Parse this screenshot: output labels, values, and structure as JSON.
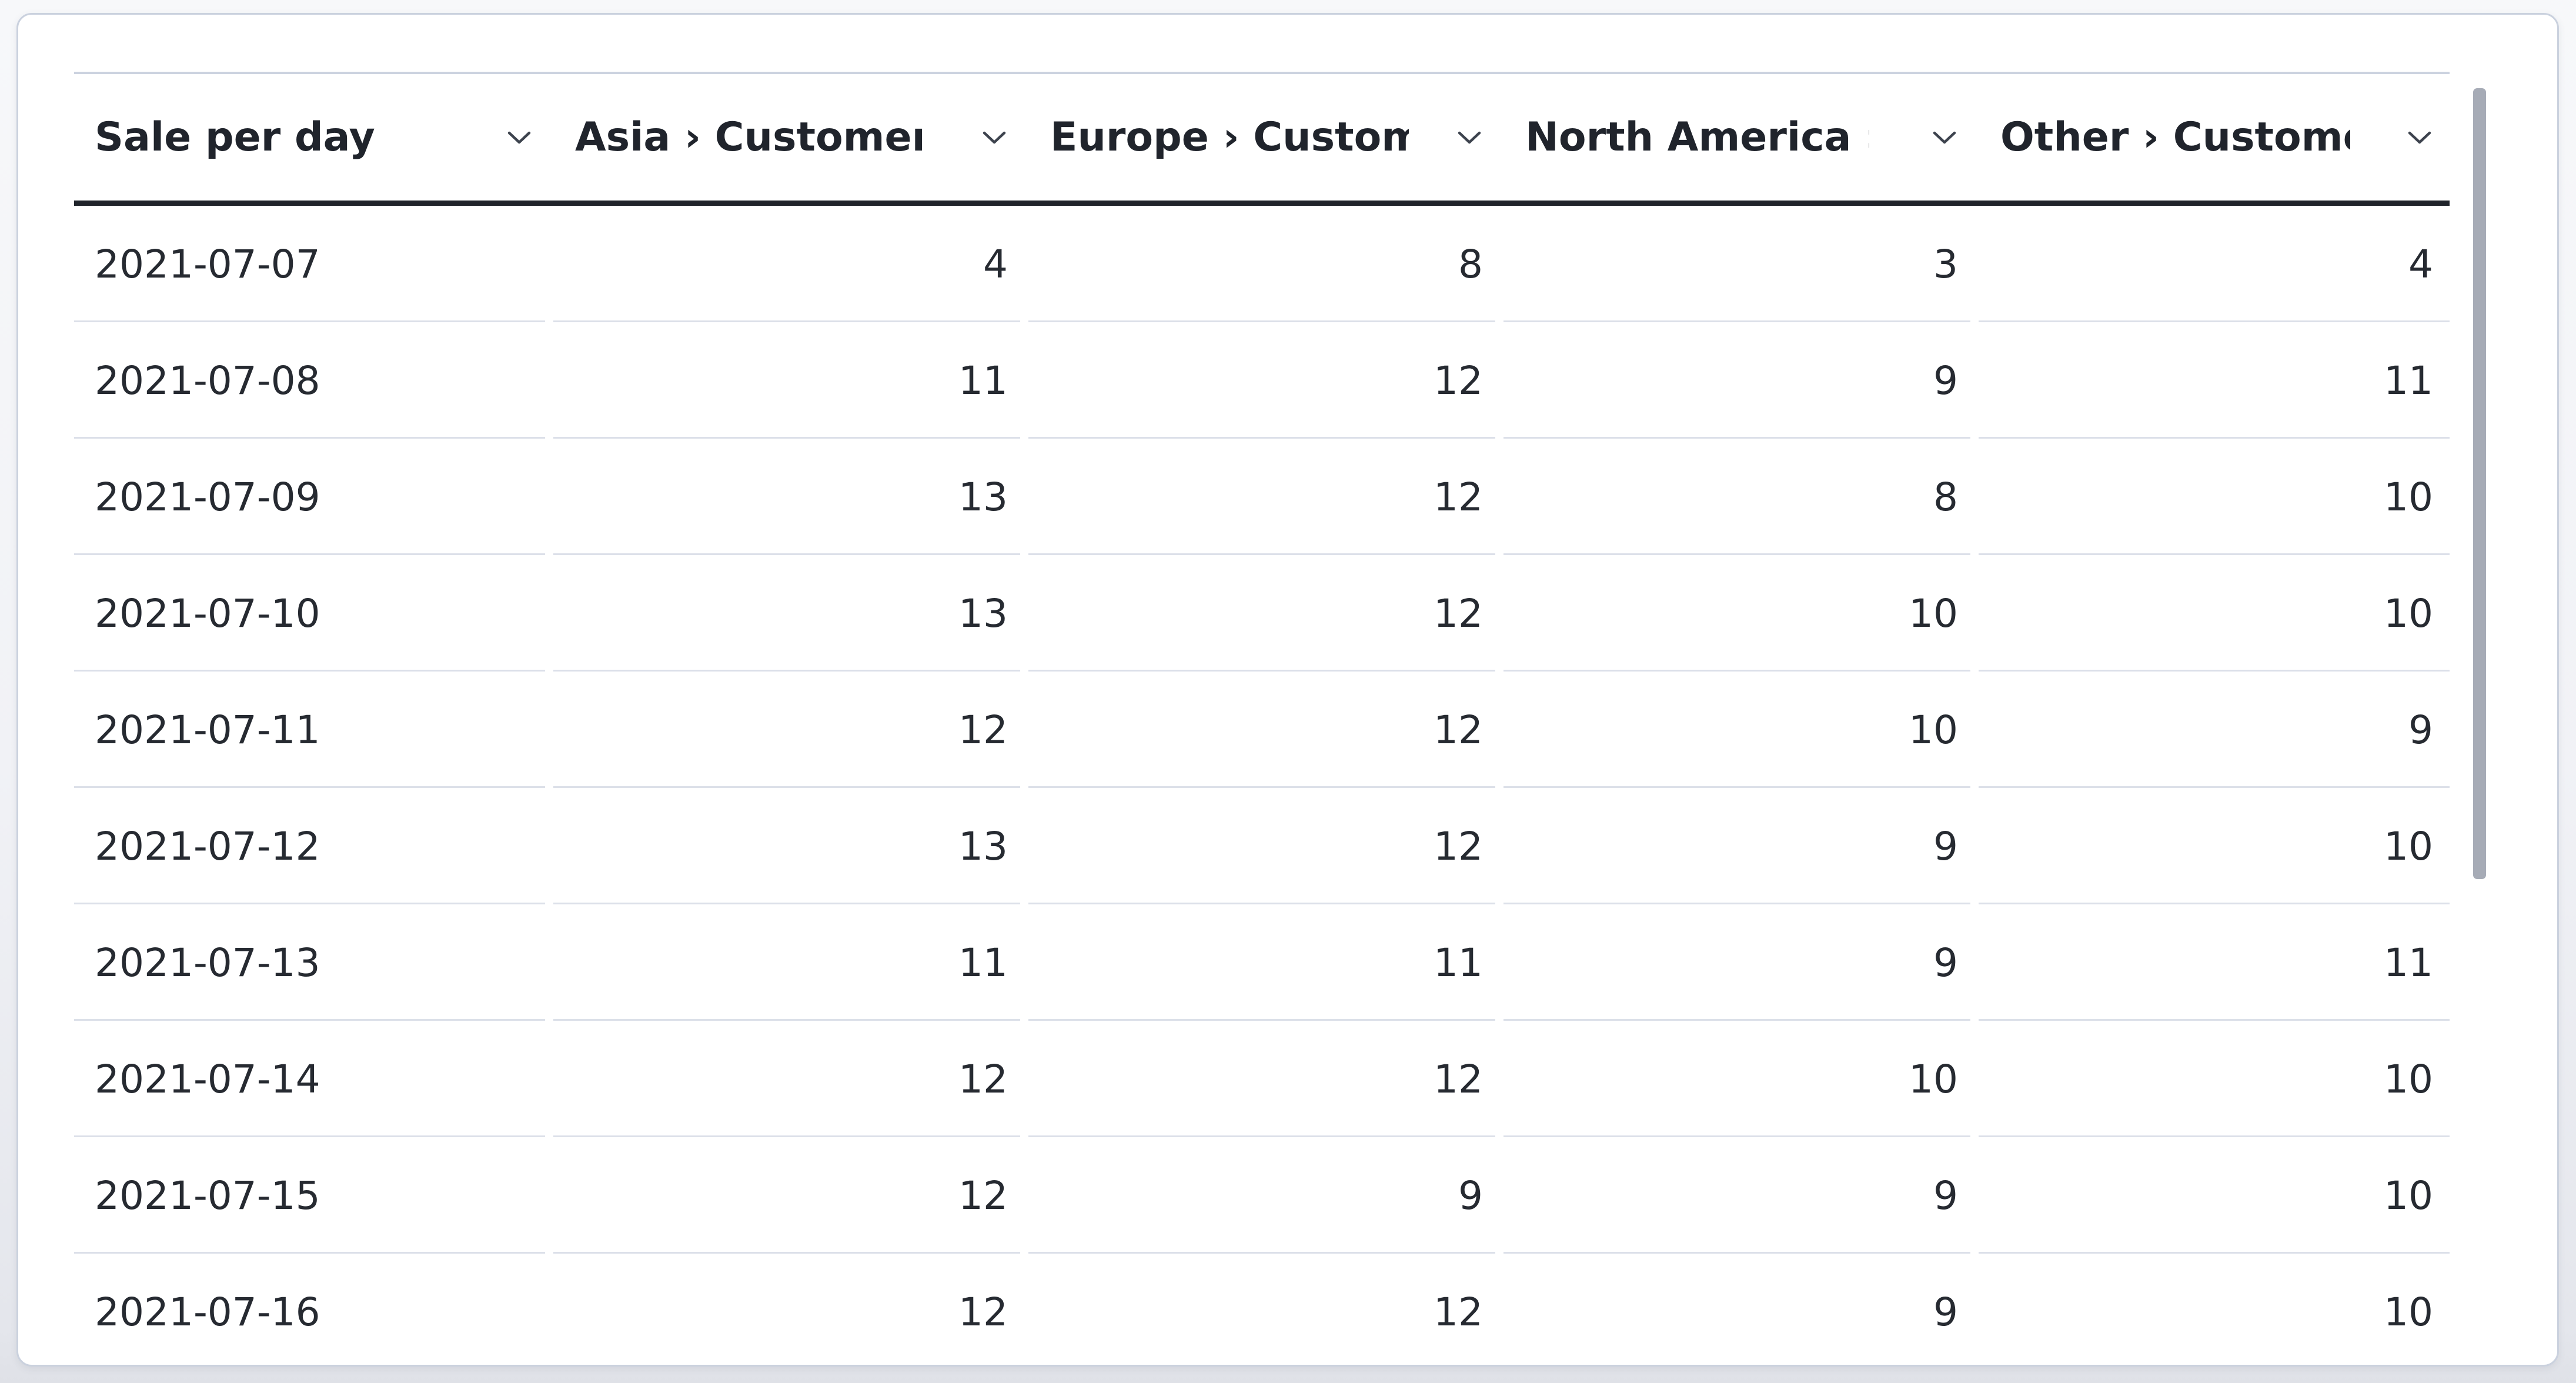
{
  "table": {
    "columns": [
      {
        "id": "sale-per-day",
        "label": "Sale per day",
        "align": "left"
      },
      {
        "id": "asia-customers",
        "label": "Asia › Customers",
        "align": "right"
      },
      {
        "id": "europe-customers",
        "label": "Europe › Customers",
        "align": "right"
      },
      {
        "id": "north-america-customers",
        "label": "North America › Customers",
        "align": "right"
      },
      {
        "id": "other-customers",
        "label": "Other › Customers",
        "align": "right"
      }
    ],
    "rows": [
      {
        "date": "2021-07-07",
        "values": [
          4,
          8,
          3,
          4
        ]
      },
      {
        "date": "2021-07-08",
        "values": [
          11,
          12,
          9,
          11
        ]
      },
      {
        "date": "2021-07-09",
        "values": [
          13,
          12,
          8,
          10
        ]
      },
      {
        "date": "2021-07-10",
        "values": [
          13,
          12,
          10,
          10
        ]
      },
      {
        "date": "2021-07-11",
        "values": [
          12,
          12,
          10,
          9
        ]
      },
      {
        "date": "2021-07-12",
        "values": [
          13,
          12,
          9,
          10
        ]
      },
      {
        "date": "2021-07-13",
        "values": [
          11,
          11,
          9,
          11
        ]
      },
      {
        "date": "2021-07-14",
        "values": [
          12,
          12,
          10,
          10
        ]
      },
      {
        "date": "2021-07-15",
        "values": [
          12,
          9,
          9,
          10
        ]
      },
      {
        "date": "2021-07-16",
        "values": [
          12,
          12,
          9,
          10
        ]
      }
    ]
  },
  "icons": {
    "header_sort": "chevron-down-icon"
  },
  "scrollbar": {
    "visible": true,
    "orientation": "vertical"
  },
  "colors": {
    "page_background": "#f1f2f6",
    "card_background": "#ffffff",
    "card_border": "#cad1de",
    "header_text": "#20242c",
    "header_underline": "#20242b",
    "table_top_border": "#ccd3e0",
    "body_text": "#262a31",
    "row_separator": "#dce0e9",
    "sort_icon": "#3d434e",
    "scrollbar_thumb": "#a6abb6"
  }
}
